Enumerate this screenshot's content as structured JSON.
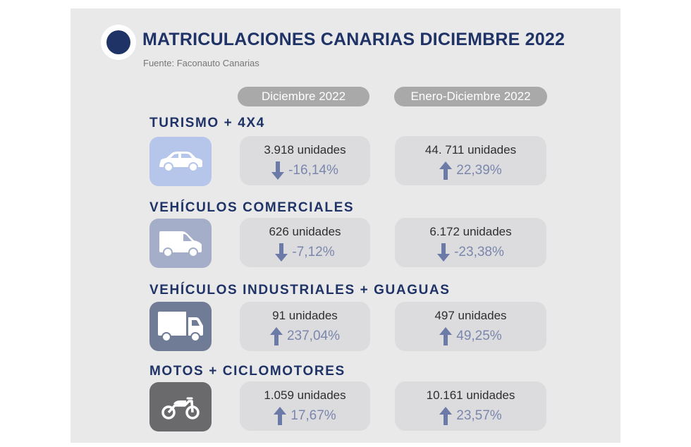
{
  "header": {
    "title": "MATRICULACIONES CANARIAS DICIEMBRE 2022",
    "source": "Fuente: Faconauto Canarias"
  },
  "periods": [
    "Diciembre 2022",
    "Enero-Diciembre 2022"
  ],
  "colors": {
    "navy": "#1f3366",
    "period_pill": "#a9a9aa",
    "stat_box": "#dcdcde",
    "change_text": "#7a86ad",
    "arrow": "#6b7aa6",
    "icon_bg_turismo": "#b5c6ea",
    "icon_bg_comerciales": "#a4aec8",
    "icon_bg_industriales": "#707b95",
    "icon_bg_motos": "#6a6a6c"
  },
  "categories": [
    {
      "title": "TURISMO + 4X4",
      "icon": "car-icon",
      "month": {
        "units": "3.918 unidades",
        "change": "-16,14%",
        "direction": "down"
      },
      "year": {
        "units": "44. 711 unidades",
        "change": "22,39%",
        "direction": "up"
      }
    },
    {
      "title": "VEHÍCULOS COMERCIALES",
      "icon": "van-icon",
      "month": {
        "units": "626 unidades",
        "change": "-7,12%",
        "direction": "down"
      },
      "year": {
        "units": "6.172 unidades",
        "change": "-23,38%",
        "direction": "down"
      }
    },
    {
      "title": "VEHÍCULOS INDUSTRIALES + GUAGUAS",
      "icon": "truck-icon",
      "month": {
        "units": "91 unidades",
        "change": "237,04%",
        "direction": "up"
      },
      "year": {
        "units": "497 unidades",
        "change": "49,25%",
        "direction": "up"
      }
    },
    {
      "title": "MOTOS + CICLOMOTORES",
      "icon": "motorcycle-icon",
      "month": {
        "units": "1.059 unidades",
        "change": "17,67%",
        "direction": "up"
      },
      "year": {
        "units": "10.161 unidades",
        "change": "23,57%",
        "direction": "up"
      }
    }
  ]
}
